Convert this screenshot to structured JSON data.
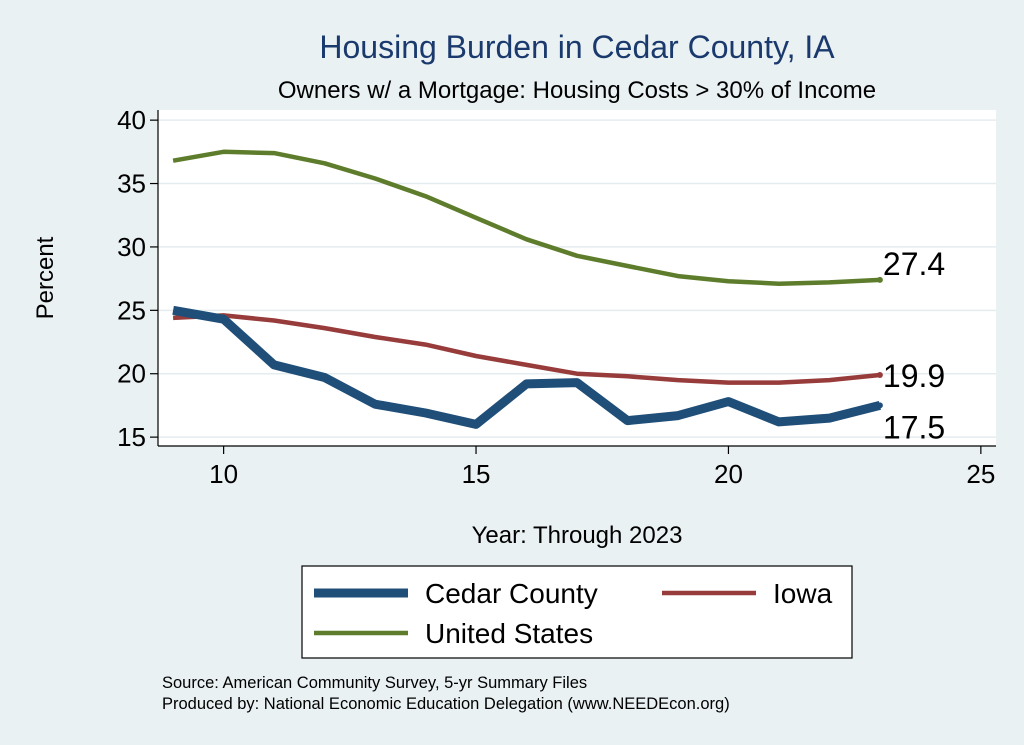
{
  "chart_data": {
    "type": "line",
    "title": "Housing Burden in Cedar County, IA",
    "subtitle": "Owners w/ a Mortgage: Housing Costs > 30% of Income",
    "xlabel": "Year: Through 2023",
    "ylabel": "Percent",
    "xlim": [
      8.7,
      25.3
    ],
    "ylim": [
      14.3,
      40.8
    ],
    "xticks": [
      10,
      15,
      20,
      25
    ],
    "yticks": [
      15,
      20,
      25,
      30,
      35,
      40
    ],
    "grid": true,
    "legend_position": "bottom",
    "x": [
      9,
      10,
      11,
      12,
      13,
      14,
      15,
      16,
      17,
      18,
      19,
      20,
      21,
      22,
      23
    ],
    "series": [
      {
        "name": "Cedar County",
        "color": "#1f4e79",
        "width": "thick",
        "values": [
          25.0,
          24.3,
          20.7,
          19.7,
          17.6,
          16.9,
          16.0,
          19.2,
          19.3,
          16.3,
          16.7,
          17.8,
          16.2,
          16.5,
          17.5
        ],
        "end_label": "17.5"
      },
      {
        "name": "Iowa",
        "color": "#973b3b",
        "width": "medium",
        "values": [
          24.4,
          24.6,
          24.2,
          23.6,
          22.9,
          22.3,
          21.4,
          20.7,
          20.0,
          19.8,
          19.5,
          19.3,
          19.3,
          19.5,
          19.9
        ],
        "end_label": "19.9"
      },
      {
        "name": "United States",
        "color": "#5e7d2c",
        "width": "medium",
        "values": [
          36.8,
          37.5,
          37.4,
          36.6,
          35.4,
          34.0,
          32.3,
          30.6,
          29.3,
          28.5,
          27.7,
          27.3,
          27.1,
          27.2,
          27.4
        ],
        "end_label": "27.4"
      }
    ],
    "legend_order": [
      "Cedar County",
      "Iowa",
      "United States"
    ]
  },
  "footer": {
    "source": "Source: American Community Survey, 5-yr Summary Files",
    "produced": "Produced by: National Economic Education Delegation (www.NEEDEcon.org)"
  }
}
